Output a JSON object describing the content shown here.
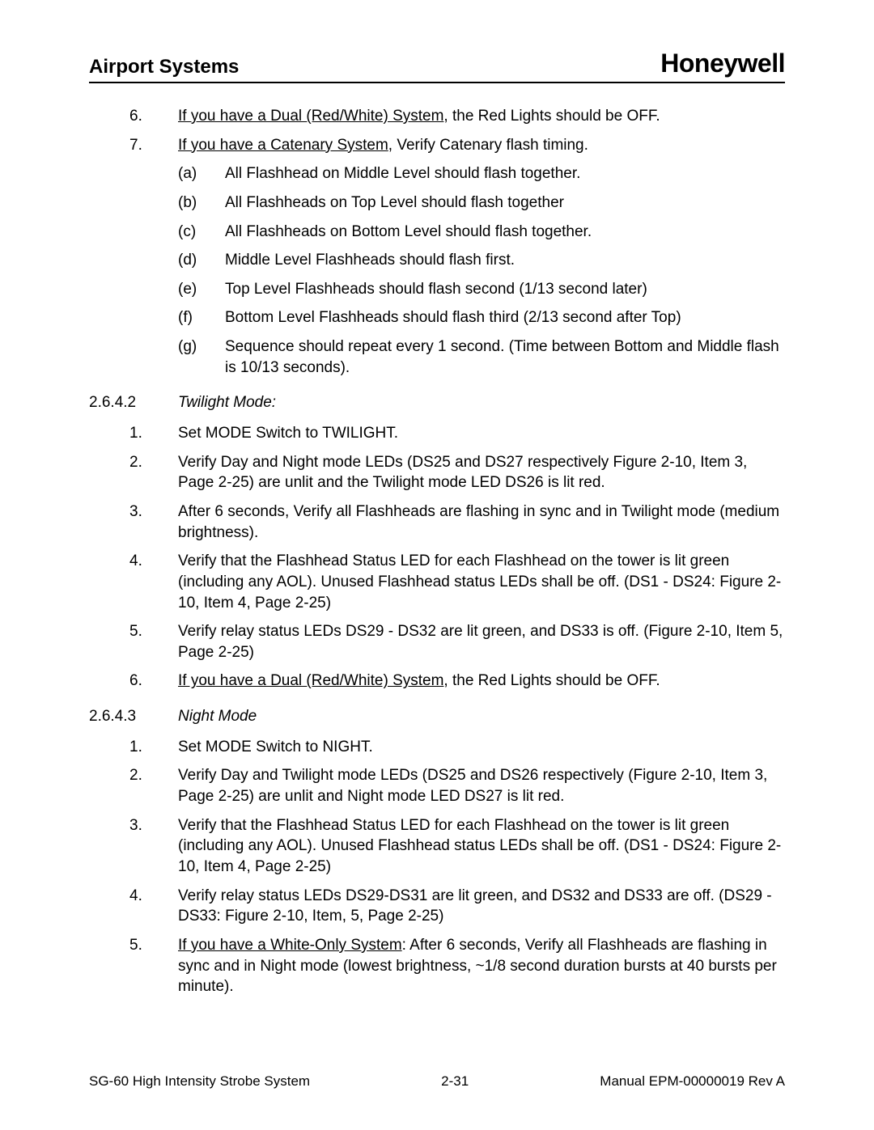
{
  "header": {
    "left": "Airport Systems",
    "right": "Honeywell"
  },
  "topItems": [
    {
      "num": "6.",
      "underlined": "If you have a Dual (Red/White) System",
      "rest": ", the Red Lights should be OFF."
    },
    {
      "num": "7.",
      "underlined": "If you have a Catenary System",
      "rest": ", Verify Catenary flash timing."
    }
  ],
  "catenarySub": [
    {
      "letter": "(a)",
      "text": "All Flashhead on Middle Level should flash together."
    },
    {
      "letter": "(b)",
      "text": "All Flashheads on Top Level should flash together"
    },
    {
      "letter": "(c)",
      "text": "All Flashheads on Bottom Level should flash together."
    },
    {
      "letter": "(d)",
      "text": "Middle Level Flashheads should flash first."
    },
    {
      "letter": "(e)",
      "text": "Top Level Flashheads should flash second (1/13 second later)"
    },
    {
      "letter": "(f)",
      "text": "Bottom Level Flashheads should flash third (2/13 second after Top)"
    },
    {
      "letter": "(g)",
      "text": "Sequence should repeat every 1 second.  (Time between Bottom and Middle flash is 10/13 seconds)."
    }
  ],
  "sec2642": {
    "num": "2.6.4.2",
    "title": "Twilight Mode:",
    "items": [
      {
        "num": "1.",
        "text": "Set MODE Switch to TWILIGHT."
      },
      {
        "num": "2.",
        "text": "Verify Day and Night mode LEDs (DS25 and DS27 respectively Figure 2-10, Item 3, Page 2-25) are unlit and the Twilight mode LED DS26 is lit red."
      },
      {
        "num": "3.",
        "text": "After 6 seconds, Verify all Flashheads are flashing in sync and in Twilight mode (medium brightness)."
      },
      {
        "num": "4.",
        "text": "Verify that the Flashhead Status LED for each Flashhead on the tower is lit green (including any AOL).  Unused Flashhead status LEDs shall be off.  (DS1 - DS24: Figure 2-10, Item 4, Page 2-25)"
      },
      {
        "num": "5.",
        "text": "Verify relay status LEDs DS29 - DS32 are lit green, and DS33 is off. (Figure 2-10, Item 5, Page 2-25)"
      },
      {
        "num": "6.",
        "underlined": "If you have a Dual (Red/White) System",
        "rest": ", the Red Lights should be OFF."
      }
    ]
  },
  "sec2643": {
    "num": "2.6.4.3",
    "title": "Night Mode",
    "items": [
      {
        "num": "1.",
        "text": "Set MODE Switch to NIGHT."
      },
      {
        "num": "2.",
        "text": "Verify Day and Twilight mode LEDs (DS25 and DS26 respectively (Figure 2-10, Item 3, Page 2-25) are unlit and Night mode LED DS27 is lit red."
      },
      {
        "num": "3.",
        "text": "Verify that the Flashhead Status LED for each Flashhead on the tower is lit green (including any AOL).  Unused Flashhead status LEDs shall be off.  (DS1 - DS24: Figure 2-10, Item 4, Page 2-25)"
      },
      {
        "num": "4.",
        "text": "Verify relay status LEDs DS29-DS31 are lit green, and DS32 and DS33 are off.  (DS29 - DS33:   Figure 2-10, Item, 5, Page 2-25)"
      },
      {
        "num": "5.",
        "underlined": "If you have a White-Only System",
        "rest": ":  After 6 seconds, Verify all Flashheads are flashing in sync and in Night mode (lowest brightness, ~1/8 second duration bursts at 40 bursts per minute)."
      }
    ]
  },
  "footer": {
    "left": "SG-60 High Intensity Strobe System",
    "center": "2-31",
    "right": "Manual EPM-00000019 Rev A"
  }
}
